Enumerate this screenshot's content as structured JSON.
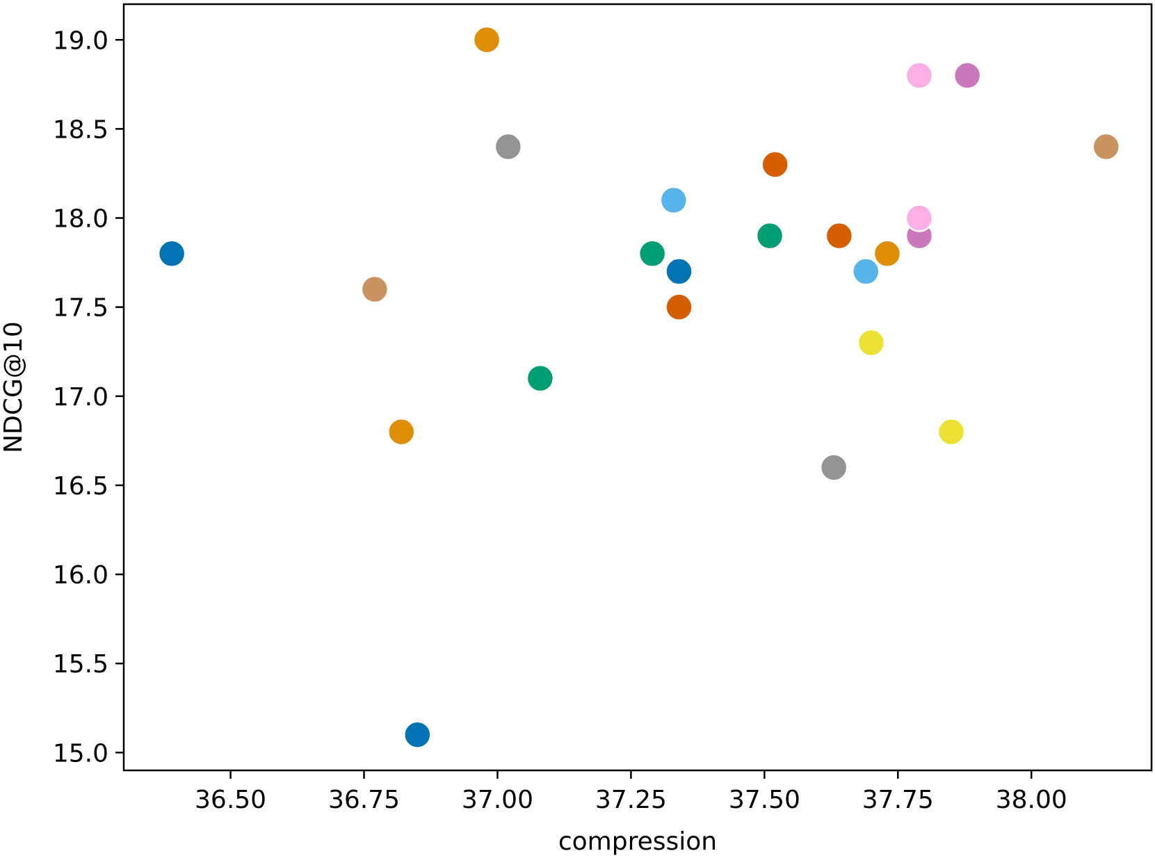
{
  "chart_data": {
    "type": "scatter",
    "title": "",
    "xlabel": "compression",
    "ylabel": "NDCG@10",
    "xlim": [
      36.3,
      38.225
    ],
    "ylim": [
      14.9,
      19.2
    ],
    "xticks": [
      36.5,
      36.75,
      37.0,
      37.25,
      37.5,
      37.75,
      38.0
    ],
    "xtick_labels": [
      "36.50",
      "36.75",
      "37.00",
      "37.25",
      "37.50",
      "37.75",
      "38.00"
    ],
    "yticks": [
      15.0,
      15.5,
      16.0,
      16.5,
      17.0,
      17.5,
      18.0,
      18.5,
      19.0
    ],
    "ytick_labels": [
      "15.0",
      "15.5",
      "16.0",
      "16.5",
      "17.0",
      "17.5",
      "18.0",
      "18.5",
      "19.0"
    ],
    "grid": false,
    "legend": "none",
    "points": [
      {
        "x": 36.39,
        "y": 17.8,
        "color": "#0173b2"
      },
      {
        "x": 36.85,
        "y": 15.1,
        "color": "#0173b2"
      },
      {
        "x": 37.34,
        "y": 17.7,
        "color": "#0173b2"
      },
      {
        "x": 36.82,
        "y": 16.8,
        "color": "#de8f05"
      },
      {
        "x": 36.98,
        "y": 19.0,
        "color": "#de8f05"
      },
      {
        "x": 37.73,
        "y": 17.8,
        "color": "#de8f05"
      },
      {
        "x": 37.08,
        "y": 17.1,
        "color": "#029e73"
      },
      {
        "x": 37.29,
        "y": 17.8,
        "color": "#029e73"
      },
      {
        "x": 37.51,
        "y": 17.9,
        "color": "#029e73"
      },
      {
        "x": 37.34,
        "y": 17.5,
        "color": "#d55e00"
      },
      {
        "x": 37.52,
        "y": 18.3,
        "color": "#d55e00"
      },
      {
        "x": 37.64,
        "y": 17.9,
        "color": "#d55e00"
      },
      {
        "x": 37.79,
        "y": 17.9,
        "color": "#cc78bc"
      },
      {
        "x": 37.88,
        "y": 18.8,
        "color": "#cc78bc"
      },
      {
        "x": 36.77,
        "y": 17.6,
        "color": "#ca9161"
      },
      {
        "x": 38.14,
        "y": 18.4,
        "color": "#ca9161"
      },
      {
        "x": 37.79,
        "y": 18.0,
        "color": "#fbafe4"
      },
      {
        "x": 37.79,
        "y": 18.8,
        "color": "#fbafe4"
      },
      {
        "x": 37.02,
        "y": 18.4,
        "color": "#949494"
      },
      {
        "x": 37.63,
        "y": 16.6,
        "color": "#949494"
      },
      {
        "x": 37.7,
        "y": 17.3,
        "color": "#ece133"
      },
      {
        "x": 37.85,
        "y": 16.8,
        "color": "#ece133"
      },
      {
        "x": 37.33,
        "y": 18.1,
        "color": "#56b4e9"
      },
      {
        "x": 37.69,
        "y": 17.7,
        "color": "#56b4e9"
      }
    ]
  }
}
